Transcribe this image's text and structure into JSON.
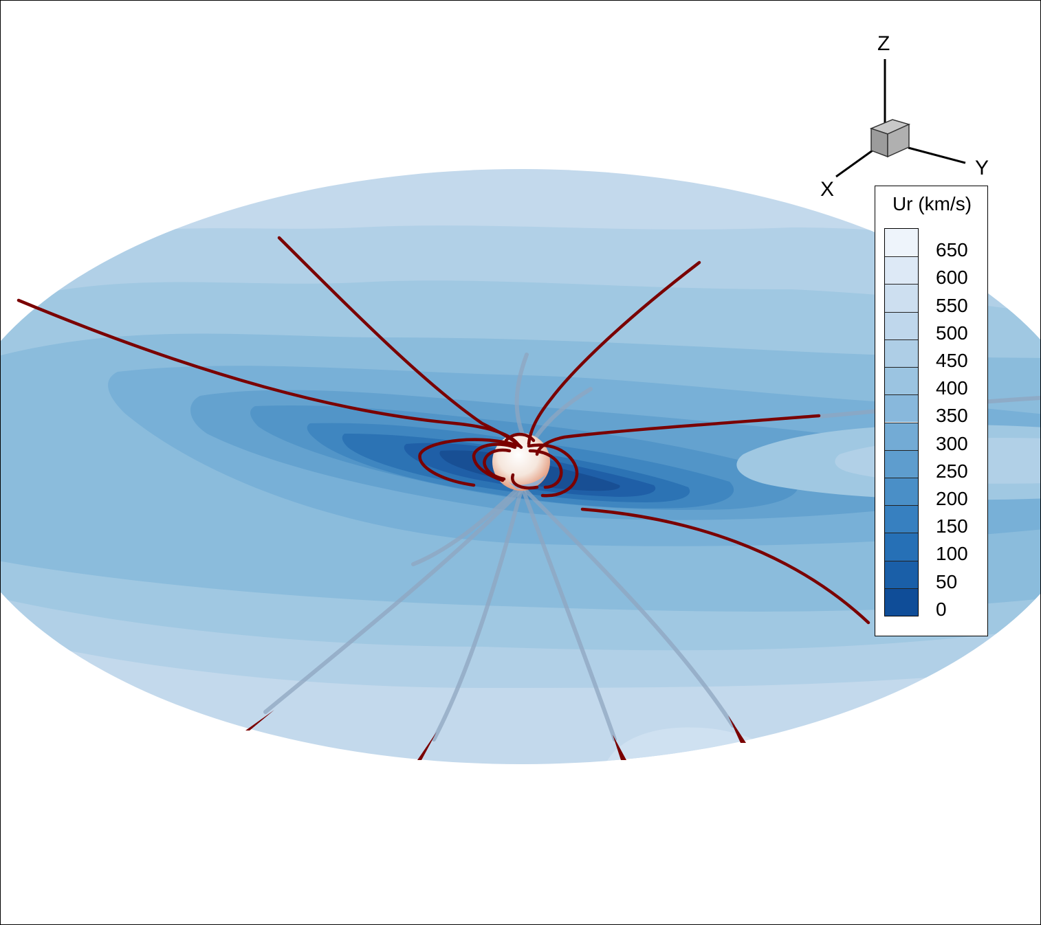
{
  "axes": {
    "z_label": "Z",
    "y_label": "Y",
    "x_label": "X"
  },
  "colorbar": {
    "title": "Ur (km/s)",
    "ticks": [
      "650",
      "600",
      "550",
      "500",
      "450",
      "400",
      "350",
      "300",
      "250",
      "200",
      "150",
      "100",
      "50",
      "0"
    ],
    "colors": [
      "#eef4fb",
      "#dde9f6",
      "#cddff0",
      "#bfd7ec",
      "#aecee6",
      "#9bc4e1",
      "#88b8dc",
      "#73abd5",
      "#5e9dce",
      "#4a8fc7",
      "#3780c0",
      "#2670b6",
      "#1a5fa8",
      "#0f4d98"
    ]
  },
  "colors": {
    "field_line": "#7a0000",
    "disk_edge": "#c3d9ec"
  }
}
